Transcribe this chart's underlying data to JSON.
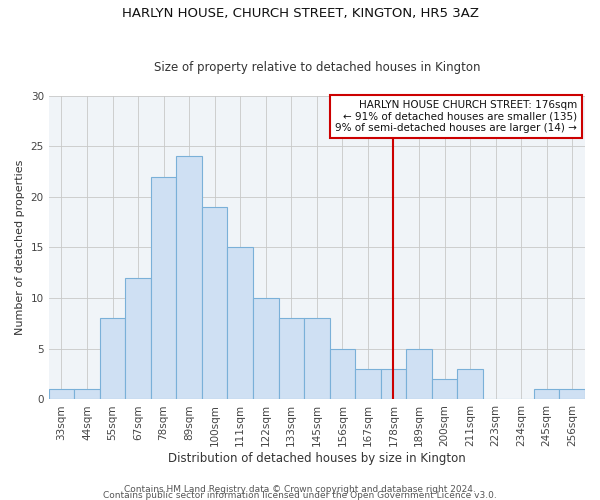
{
  "title": "HARLYN HOUSE, CHURCH STREET, KINGTON, HR5 3AZ",
  "subtitle": "Size of property relative to detached houses in Kington",
  "xlabel": "Distribution of detached houses by size in Kington",
  "ylabel": "Number of detached properties",
  "bar_labels": [
    "33sqm",
    "44sqm",
    "55sqm",
    "67sqm",
    "78sqm",
    "89sqm",
    "100sqm",
    "111sqm",
    "122sqm",
    "133sqm",
    "145sqm",
    "156sqm",
    "167sqm",
    "178sqm",
    "189sqm",
    "200sqm",
    "211sqm",
    "223sqm",
    "234sqm",
    "245sqm",
    "256sqm"
  ],
  "bar_values": [
    1,
    1,
    8,
    12,
    22,
    24,
    19,
    15,
    10,
    8,
    8,
    5,
    3,
    3,
    5,
    2,
    3,
    0,
    0,
    1,
    1
  ],
  "bar_color": "#cfe0f3",
  "bar_edge_color": "#7ab0d8",
  "grid_color": "#c8c8c8",
  "vline_x_index": 13,
  "vline_color": "#cc0000",
  "annotation_title": "HARLYN HOUSE CHURCH STREET: 176sqm",
  "annotation_line1": "← 91% of detached houses are smaller (135)",
  "annotation_line2": "9% of semi-detached houses are larger (14) →",
  "annotation_box_color": "#ffffff",
  "annotation_box_edge": "#cc0000",
  "ylim": [
    0,
    30
  ],
  "yticks": [
    0,
    5,
    10,
    15,
    20,
    25,
    30
  ],
  "footer1": "Contains HM Land Registry data © Crown copyright and database right 2024.",
  "footer2": "Contains public sector information licensed under the Open Government Licence v3.0.",
  "title_fontsize": 9.5,
  "subtitle_fontsize": 8.5,
  "xlabel_fontsize": 8.5,
  "ylabel_fontsize": 8,
  "tick_fontsize": 7.5,
  "footer_fontsize": 6.5,
  "annotation_fontsize": 7.5
}
